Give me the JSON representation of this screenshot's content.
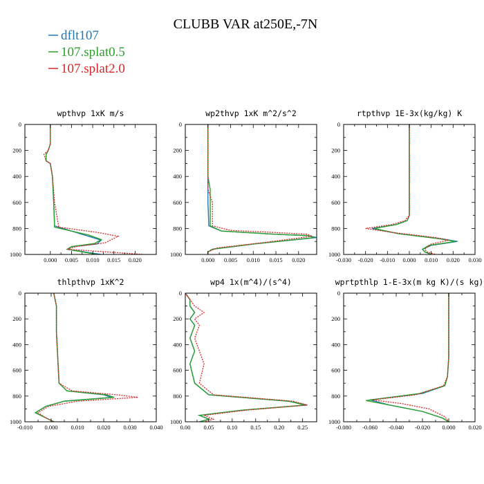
{
  "figure_title": "CLUBB VAR at250E,-7N",
  "legend": [
    {
      "label": "dflt107",
      "color": "#1f77b4"
    },
    {
      "label": "107.splat0.5",
      "color": "#2ca02c"
    },
    {
      "label": "107.splat2.0",
      "color": "#d62728"
    }
  ],
  "chart_data": [
    {
      "type": "line",
      "title": "wpthvp   1xK m/s",
      "xlim": [
        -0.006,
        0.025
      ],
      "ylim": [
        1000,
        0
      ],
      "xticks": [
        0.0,
        0.005,
        0.01,
        0.015,
        0.02
      ],
      "xtick_labels": [
        "0.000",
        "0.005",
        "0.010",
        "0.015",
        "0.020"
      ],
      "yticks": [
        0,
        200,
        400,
        600,
        800,
        1000
      ],
      "ytick_labels": [
        "0",
        "200",
        "400",
        "600",
        "800",
        "1000"
      ],
      "series": [
        {
          "name": "dflt107",
          "x": [
            0.0,
            0.0,
            -0.0005,
            -0.001,
            -0.001,
            0.0,
            0.0005,
            0.0008,
            0.001,
            0.008,
            0.012,
            0.011,
            0.005,
            0.004,
            0.012
          ],
          "y": [
            0,
            150,
            200,
            230,
            280,
            300,
            400,
            600,
            780,
            850,
            890,
            920,
            940,
            960,
            1000
          ]
        },
        {
          "name": "107.splat0.5",
          "x": [
            0.0,
            0.0,
            -0.0005,
            -0.001,
            -0.001,
            0.0,
            0.0005,
            0.0008,
            0.001,
            0.009,
            0.012,
            0.0105,
            0.005,
            0.004,
            0.011
          ],
          "y": [
            0,
            150,
            200,
            230,
            280,
            300,
            400,
            600,
            790,
            850,
            885,
            915,
            940,
            960,
            1000
          ]
        },
        {
          "name": "107.splat2.0",
          "x": [
            0.0,
            0.0,
            -0.0005,
            -0.0015,
            -0.001,
            0.0,
            0.0005,
            0.001,
            0.002,
            0.011,
            0.016,
            0.013,
            0.006,
            0.004,
            0.022
          ],
          "y": [
            0,
            150,
            200,
            230,
            280,
            300,
            400,
            600,
            790,
            830,
            860,
            910,
            940,
            960,
            1000
          ]
        }
      ]
    },
    {
      "type": "line",
      "title": "wp2thvp   1xK m^2/s^2",
      "xlim": [
        -0.005,
        0.024
      ],
      "ylim": [
        1000,
        0
      ],
      "xticks": [
        0.0,
        0.005,
        0.01,
        0.015,
        0.02
      ],
      "xtick_labels": [
        "0.000",
        "0.005",
        "0.010",
        "0.015",
        "0.020"
      ],
      "yticks": [
        0,
        200,
        400,
        600,
        800,
        1000
      ],
      "ytick_labels": [
        "0",
        "200",
        "400",
        "600",
        "800",
        "1000"
      ],
      "series": [
        {
          "name": "dflt107",
          "x": [
            0.0,
            0.0,
            0.0,
            0.0,
            0.0,
            0.0002,
            0.003,
            0.015,
            0.022,
            0.024,
            0.01,
            0.001,
            0.0,
            0.0
          ],
          "y": [
            0,
            200,
            400,
            500,
            600,
            780,
            820,
            845,
            855,
            870,
            920,
            960,
            980,
            1000
          ]
        },
        {
          "name": "107.splat0.5",
          "x": [
            0.0,
            0.0,
            0.0,
            0.0005,
            0.0005,
            0.0005,
            0.003,
            0.015,
            0.022,
            0.0235,
            0.01,
            0.001,
            0.0,
            0.0
          ],
          "y": [
            0,
            200,
            400,
            500,
            600,
            780,
            820,
            845,
            855,
            870,
            920,
            960,
            980,
            1000
          ]
        },
        {
          "name": "107.splat2.0",
          "x": [
            0.0,
            0.0,
            0.0,
            0.0,
            0.001,
            0.001,
            0.005,
            0.017,
            0.022,
            0.023,
            0.012,
            0.002,
            0.0,
            0.0
          ],
          "y": [
            0,
            200,
            400,
            500,
            600,
            780,
            815,
            835,
            845,
            860,
            910,
            950,
            980,
            1000
          ]
        }
      ]
    },
    {
      "type": "line",
      "title": "rtpthvp   1E-3x(kg/kg) K",
      "xlim": [
        -0.03,
        0.03
      ],
      "ylim": [
        1000,
        0
      ],
      "xticks": [
        -0.03,
        -0.02,
        -0.01,
        0.0,
        0.01,
        0.02,
        0.03
      ],
      "xtick_labels": [
        "-0.030",
        "-0.020",
        "-0.010",
        "0.000",
        "0.010",
        "0.020",
        "0.030"
      ],
      "yticks": [
        0,
        200,
        400,
        600,
        800,
        1000
      ],
      "ytick_labels": [
        "0",
        "200",
        "400",
        "600",
        "800",
        "1000"
      ],
      "series": [
        {
          "name": "dflt107",
          "x": [
            0.0,
            0.0,
            0.0,
            -0.001,
            -0.006,
            -0.017,
            -0.005,
            0.015,
            0.022,
            0.01,
            0.006,
            0.007,
            0.01
          ],
          "y": [
            0,
            400,
            700,
            740,
            770,
            800,
            840,
            880,
            900,
            930,
            960,
            980,
            1000
          ]
        },
        {
          "name": "107.splat0.5",
          "x": [
            0.0,
            0.0,
            0.0,
            -0.001,
            -0.006,
            -0.016,
            -0.005,
            0.014,
            0.021,
            0.009,
            0.006,
            0.007,
            0.01
          ],
          "y": [
            0,
            400,
            700,
            740,
            770,
            800,
            840,
            880,
            900,
            930,
            960,
            980,
            1000
          ]
        },
        {
          "name": "107.splat2.0",
          "x": [
            0.0,
            0.0,
            0.0,
            -0.002,
            -0.008,
            -0.02,
            -0.008,
            0.012,
            0.018,
            0.01,
            0.007,
            0.008,
            0.012
          ],
          "y": [
            0,
            400,
            700,
            740,
            770,
            800,
            830,
            870,
            890,
            920,
            960,
            980,
            1000
          ]
        }
      ]
    },
    {
      "type": "line",
      "title": "thlpthvp   1xK^2",
      "xlim": [
        -0.01,
        0.04
      ],
      "ylim": [
        1000,
        0
      ],
      "xticks": [
        -0.01,
        0.0,
        0.01,
        0.02,
        0.03,
        0.04
      ],
      "xtick_labels": [
        "-0.010",
        "0.000",
        "0.010",
        "0.020",
        "0.030",
        "0.040"
      ],
      "yticks": [
        0,
        200,
        400,
        600,
        800,
        1000
      ],
      "ytick_labels": [
        "0",
        "200",
        "400",
        "600",
        "800",
        "1000"
      ],
      "series": [
        {
          "name": "dflt107",
          "x": [
            0.001,
            0.002,
            0.002,
            0.0025,
            0.003,
            0.006,
            0.02,
            0.023,
            0.005,
            -0.002,
            -0.006,
            -0.002,
            0.001
          ],
          "y": [
            0,
            100,
            300,
            500,
            700,
            760,
            790,
            810,
            840,
            880,
            930,
            970,
            1000
          ]
        },
        {
          "name": "107.splat0.5",
          "x": [
            0.001,
            0.002,
            0.002,
            0.0025,
            0.003,
            0.006,
            0.021,
            0.024,
            0.005,
            -0.002,
            -0.006,
            -0.002,
            0.001
          ],
          "y": [
            0,
            100,
            300,
            500,
            700,
            760,
            790,
            810,
            840,
            880,
            930,
            970,
            1000
          ]
        },
        {
          "name": "107.splat2.0",
          "x": [
            0.001,
            0.002,
            0.002,
            0.0025,
            0.003,
            0.008,
            0.025,
            0.033,
            0.01,
            -0.001,
            -0.005,
            -0.002,
            0.001
          ],
          "y": [
            0,
            100,
            300,
            500,
            700,
            760,
            790,
            810,
            840,
            880,
            930,
            970,
            1000
          ]
        }
      ]
    },
    {
      "type": "line",
      "title": "wp4   1x(m^4)/(s^4)",
      "xlim": [
        0.0,
        0.28
      ],
      "ylim": [
        1000,
        0
      ],
      "xticks": [
        0.0,
        0.05,
        0.1,
        0.15,
        0.2,
        0.25
      ],
      "xtick_labels": [
        "0.00",
        "0.05",
        "0.10",
        "0.15",
        "0.20",
        "0.25"
      ],
      "yticks": [
        0,
        200,
        400,
        600,
        800,
        1000
      ],
      "ytick_labels": [
        "0",
        "200",
        "400",
        "600",
        "800",
        "1000"
      ],
      "series": [
        {
          "name": "dflt107",
          "x": [
            0.0,
            0.01,
            0.01,
            0.02,
            0.01,
            0.02,
            0.01,
            0.02,
            0.01,
            0.02,
            0.05,
            0.22,
            0.26,
            0.12,
            0.03,
            0.05,
            0.03
          ],
          "y": [
            0,
            50,
            100,
            150,
            200,
            250,
            350,
            450,
            550,
            700,
            790,
            840,
            870,
            910,
            950,
            980,
            1000
          ]
        },
        {
          "name": "107.splat0.5",
          "x": [
            0.0,
            0.01,
            0.01,
            0.02,
            0.01,
            0.02,
            0.01,
            0.02,
            0.01,
            0.02,
            0.05,
            0.22,
            0.255,
            0.12,
            0.03,
            0.05,
            0.03
          ],
          "y": [
            0,
            50,
            100,
            150,
            200,
            250,
            350,
            450,
            550,
            700,
            790,
            840,
            870,
            910,
            950,
            980,
            1000
          ]
        },
        {
          "name": "107.splat2.0",
          "x": [
            0.0,
            0.01,
            0.02,
            0.04,
            0.02,
            0.03,
            0.02,
            0.03,
            0.04,
            0.03,
            0.06,
            0.23,
            0.26,
            0.13,
            0.04,
            0.06,
            0.04
          ],
          "y": [
            0,
            50,
            100,
            150,
            200,
            250,
            350,
            450,
            550,
            700,
            790,
            840,
            870,
            910,
            950,
            980,
            1000
          ]
        }
      ]
    },
    {
      "type": "line",
      "title": "wprtpthlp   1-E-3x(m kg K)/(s kg)",
      "xlim": [
        -0.08,
        0.02
      ],
      "ylim": [
        1000,
        0
      ],
      "xticks": [
        -0.08,
        -0.06,
        -0.04,
        -0.02,
        0.0,
        0.02
      ],
      "xtick_labels": [
        "-0.080",
        "-0.060",
        "-0.040",
        "-0.020",
        "0.000",
        "0.020"
      ],
      "yticks": [
        0,
        200,
        400,
        600,
        800,
        1000
      ],
      "ytick_labels": [
        "0",
        "200",
        "400",
        "600",
        "800",
        "1000"
      ],
      "series": [
        {
          "name": "dflt107",
          "x": [
            0.0,
            0.0,
            0.0,
            -0.001,
            -0.003,
            -0.02,
            -0.06,
            -0.045,
            -0.02,
            -0.005,
            0.0
          ],
          "y": [
            0,
            300,
            500,
            650,
            720,
            780,
            830,
            870,
            920,
            970,
            1000
          ]
        },
        {
          "name": "107.splat0.5",
          "x": [
            0.0,
            0.0,
            0.0,
            -0.001,
            -0.003,
            -0.022,
            -0.063,
            -0.045,
            -0.02,
            -0.005,
            0.0
          ],
          "y": [
            0,
            300,
            500,
            650,
            720,
            780,
            835,
            870,
            920,
            970,
            1000
          ]
        },
        {
          "name": "107.splat2.0",
          "x": [
            0.0,
            0.0,
            0.0,
            -0.001,
            -0.004,
            -0.025,
            -0.058,
            -0.035,
            -0.015,
            -0.003,
            0.0
          ],
          "y": [
            0,
            300,
            500,
            650,
            720,
            790,
            830,
            860,
            900,
            960,
            1000
          ]
        }
      ]
    }
  ]
}
